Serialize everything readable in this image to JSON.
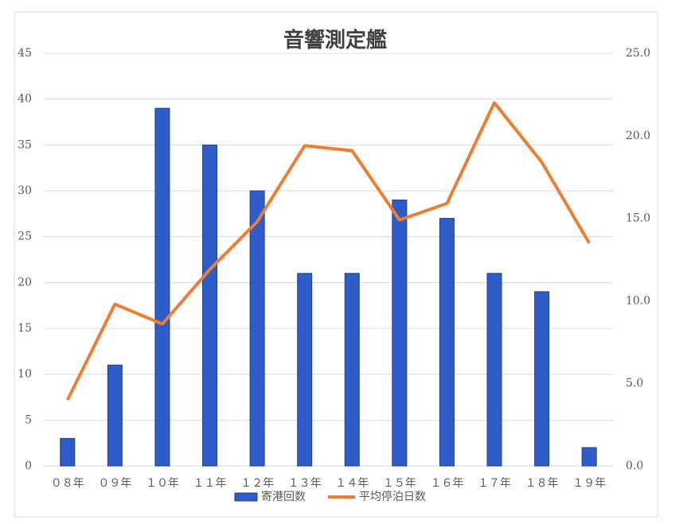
{
  "chart_data": {
    "type": "bar",
    "title": "音響測定艦",
    "categories": [
      "０８年",
      "０９年",
      "１０年",
      "１１年",
      "１２年",
      "１３年",
      "１４年",
      "１５年",
      "１６年",
      "１７年",
      "１８年",
      "１９年"
    ],
    "series": [
      {
        "name": "寄港回数",
        "type": "bar",
        "color": "#2e5cc8",
        "values": [
          3,
          11,
          39,
          35,
          30,
          21,
          21,
          29,
          27,
          21,
          19,
          2
        ]
      },
      {
        "name": "平均停泊日数",
        "type": "line",
        "axis": "y2",
        "color": "#ed7d31",
        "values": [
          4.0,
          9.8,
          8.6,
          11.9,
          14.8,
          19.4,
          19.1,
          14.9,
          15.9,
          22.0,
          18.4,
          13.5
        ]
      }
    ],
    "ylim": [
      0,
      45
    ],
    "yticks": [
      0,
      5,
      10,
      15,
      20,
      25,
      30,
      35,
      40,
      45
    ],
    "y2lim": [
      0,
      25
    ],
    "y2ticks": [
      {
        "value": 0,
        "label": "0.0"
      },
      {
        "value": 5,
        "label": "5.0"
      },
      {
        "value": 10,
        "label": "10.0"
      },
      {
        "value": 15,
        "label": "15.0"
      },
      {
        "value": 20,
        "label": "20.0"
      },
      {
        "value": 25,
        "label": "25.0"
      }
    ],
    "grid": true,
    "legend": "bottom"
  }
}
